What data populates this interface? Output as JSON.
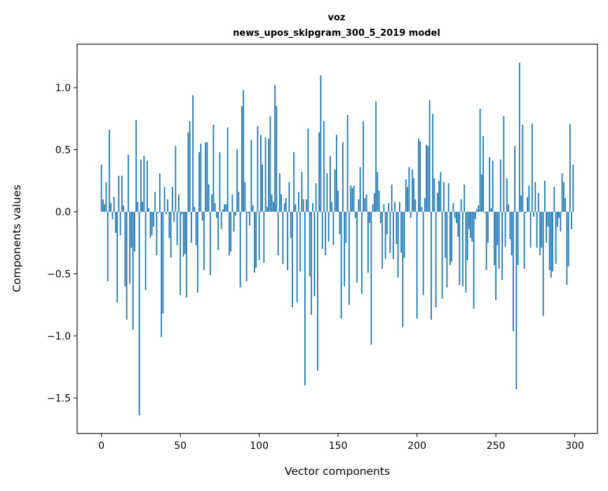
{
  "chart_data": {
    "type": "bar",
    "title": "voz",
    "subtitle": "news_upos_skipgram_300_5_2019 model",
    "xlabel": "Vector components",
    "ylabel": "Components values",
    "xlim": [
      -15.4,
      314.4
    ],
    "ylim": [
      -1.786,
      1.35
    ],
    "bar_width": 0.8,
    "bar_color": "#1f77b4",
    "grid": false,
    "xticks": [
      0,
      50,
      100,
      150,
      200,
      250,
      300
    ],
    "xtick_labels": [
      "0",
      "50",
      "100",
      "150",
      "200",
      "250",
      "300"
    ],
    "yticks": [
      -1.5,
      -1.0,
      -0.5,
      0.0,
      0.5,
      1.0
    ],
    "ytick_labels": [
      "−1.5",
      "−1.0",
      "−0.5",
      "0.0",
      "0.5",
      "1.0"
    ],
    "values": [
      0.38,
      0.1,
      0.06,
      0.24,
      -0.56,
      0.66,
      0.07,
      -0.06,
      0.12,
      -0.17,
      -0.73,
      0.29,
      -0.19,
      0.29,
      0.05,
      -0.6,
      -0.87,
      0.46,
      -0.58,
      -0.29,
      -0.95,
      -0.32,
      0.74,
      0.08,
      -1.64,
      0.42,
      0.08,
      0.45,
      -0.63,
      0.41,
      0.03,
      -0.21,
      -0.19,
      -0.12,
      0.16,
      -0.35,
      -0.01,
      0.31,
      -1.01,
      -0.82,
      0.2,
      -0.02,
      0.1,
      -0.21,
      -0.37,
      0.2,
      -0.08,
      0.53,
      -0.27,
      0.14,
      -0.67,
      -0.02,
      -0.36,
      -0.34,
      -0.69,
      0.64,
      0.73,
      -0.25,
      0.94,
      0.04,
      -0.27,
      -0.65,
      0.48,
      0.55,
      -0.07,
      -0.47,
      0.56,
      0.56,
      0.22,
      -0.51,
      0.14,
      0.7,
      0.07,
      -0.05,
      -0.31,
      0.48,
      -0.14,
      0.02,
      0.06,
      0.06,
      0.68,
      -0.35,
      -0.32,
      0.14,
      -0.16,
      -0.03,
      0.5,
      0.16,
      -0.61,
      0.85,
      0.98,
      0.24,
      -0.56,
      -0.01,
      -0.11,
      0.58,
      0.05,
      -0.49,
      -0.45,
      0.69,
      -0.39,
      0.62,
      0.38,
      -0.41,
      0.6,
      0.04,
      0.59,
      0.77,
      0.14,
      0.08,
      1.02,
      0.85,
      -0.35,
      0.31,
      0.14,
      -0.42,
      0.07,
      0.11,
      -0.47,
      0.24,
      -0.21,
      -0.77,
      0.48,
      0.06,
      -0.73,
      0.16,
      -0.48,
      0.32,
      0.1,
      -1.4,
      0.1,
      0.67,
      -0.52,
      -0.83,
      0.07,
      -0.68,
      0.23,
      -1.28,
      0.64,
      1.1,
      -0.3,
      0.73,
      -0.35,
      0.31,
      -0.24,
      0.45,
      0.08,
      -0.27,
      0.34,
      0.62,
      0.17,
      -0.18,
      -0.86,
      0.56,
      -0.6,
      -0.25,
      0.78,
      -0.75,
      0.21,
      0.19,
      0.21,
      -0.05,
      -0.57,
      0.1,
      0.36,
      -0.66,
      0.73,
      0.11,
      0.14,
      -0.49,
      -0.09,
      -1.07,
      0.06,
      0.15,
      0.89,
      0.32,
      0.17,
      -0.09,
      -0.46,
      0.06,
      -0.38,
      -0.18,
      0.07,
      -0.33,
      0.22,
      -0.38,
      0.08,
      -0.26,
      -0.53,
      0.08,
      -0.33,
      -0.93,
      -0.37,
      0.26,
      0.2,
      0.36,
      -0.05,
      0.34,
      0.27,
      0.1,
      -0.86,
      0.59,
      0.57,
      0.04,
      -0.67,
      0.11,
      0.54,
      0.53,
      0.9,
      -0.87,
      0.79,
      0.27,
      -0.77,
      0.15,
      0.25,
      0.32,
      -0.7,
      0.24,
      -0.37,
      -0.61,
      0.23,
      -0.43,
      -0.4,
      0.07,
      -0.05,
      -0.09,
      -0.2,
      -0.59,
      0.1,
      -0.6,
      0.22,
      -0.65,
      -0.39,
      -0.14,
      -0.21,
      -0.24,
      -0.78,
      -0.06,
      0.02,
      0.05,
      0.83,
      0.3,
      0.61,
      -0.01,
      -0.47,
      -0.25,
      0.44,
      0.03,
      0.41,
      -0.43,
      -0.71,
      -0.27,
      -0.46,
      0.42,
      -0.55,
      0.77,
      -0.28,
      0.27,
      0.06,
      -0.22,
      -0.35,
      -0.96,
      0.53,
      -1.43,
      -0.43,
      1.2,
      0.13,
      0.7,
      -0.46,
      -0.01,
      0.12,
      0.21,
      -0.29,
      0.71,
      -0.04,
      0.24,
      -0.29,
      0.15,
      -0.35,
      -0.29,
      -0.84,
      0.25,
      -0.25,
      -0.12,
      -0.47,
      -0.53,
      -0.48,
      0.2,
      -0.42,
      -0.12,
      -0.05,
      -0.16,
      0.31,
      0.24,
      0.11,
      -0.59,
      -0.44,
      0.71,
      -0.14,
      0.38
    ]
  }
}
